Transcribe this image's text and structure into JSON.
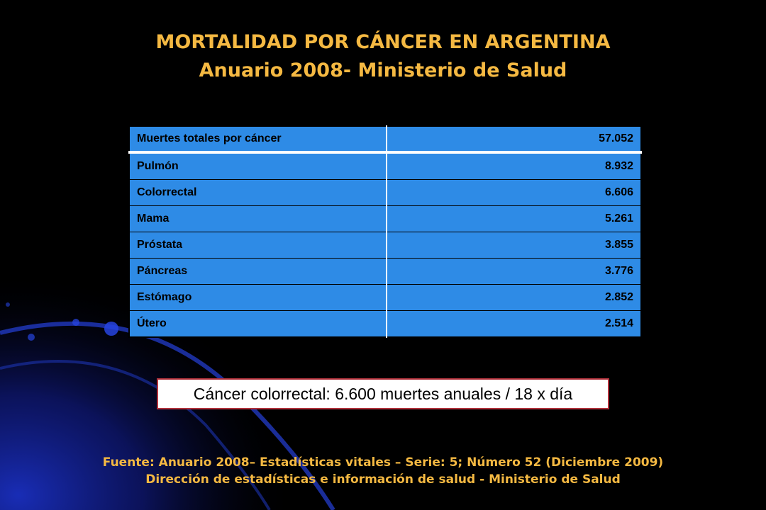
{
  "slide": {
    "title_line1": "MORTALIDAD POR CÁNCER EN ARGENTINA",
    "title_line2": "Anuario 2008- Ministerio de Salud"
  },
  "table": {
    "rows": [
      {
        "label": "Muertes totales por cáncer",
        "value": "57.052"
      },
      {
        "label": "Pulmón",
        "value": "8.932"
      },
      {
        "label": "Colorrectal",
        "value": "6.606"
      },
      {
        "label": "Mama",
        "value": "5.261"
      },
      {
        "label": "Próstata",
        "value": "3.855"
      },
      {
        "label": "Páncreas",
        "value": "3.776"
      },
      {
        "label": "Estómago",
        "value": "2.852"
      },
      {
        "label": "Útero",
        "value": "2.514"
      }
    ]
  },
  "highlight": {
    "text": "Cáncer colorrectal: 6.600 muertes anuales / 18 x día"
  },
  "source": {
    "line1": "Fuente: Anuario 2008– Estadísticas vitales – Serie: 5; Número 52 (Diciembre 2009)",
    "line2": "Dirección de estadísticas e información de salud - Ministerio de Salud"
  },
  "colors": {
    "background": "#000000",
    "title": "#f5b942",
    "table_fill": "#2e8be6",
    "highlight_border": "#b0303a",
    "decor_blue": "#1a2fbf"
  }
}
